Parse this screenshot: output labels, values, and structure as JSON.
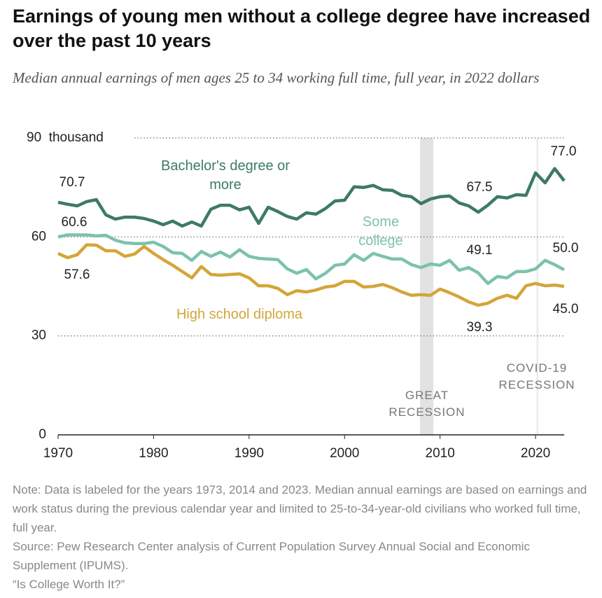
{
  "chart_data": {
    "type": "line",
    "title": "Earnings of young men without a college degree have increased over the past 10 years",
    "subtitle": "Median annual earnings of men ages 25 to 34 working full time, full year, in 2022 dollars",
    "x": [
      1970,
      1971,
      1972,
      1973,
      1974,
      1975,
      1976,
      1977,
      1978,
      1979,
      1980,
      1981,
      1982,
      1983,
      1984,
      1985,
      1986,
      1987,
      1988,
      1989,
      1990,
      1991,
      1992,
      1993,
      1994,
      1995,
      1996,
      1997,
      1998,
      1999,
      2000,
      2001,
      2002,
      2003,
      2004,
      2005,
      2006,
      2007,
      2008,
      2009,
      2010,
      2011,
      2012,
      2013,
      2014,
      2015,
      2016,
      2017,
      2018,
      2019,
      2020,
      2021,
      2022,
      2023
    ],
    "series": [
      {
        "name": "Bachelor's degree or more",
        "color": "#3d7a68",
        "values": [
          70.5,
          69.9,
          69.4,
          70.7,
          71.3,
          66.7,
          65.4,
          66.0,
          66.0,
          65.6,
          64.8,
          63.7,
          64.8,
          63.3,
          64.5,
          63.3,
          68.4,
          69.6,
          69.6,
          68.2,
          69.0,
          64.1,
          69.0,
          67.7,
          66.2,
          65.4,
          67.3,
          66.9,
          68.6,
          70.9,
          71.1,
          75.2,
          75.0,
          75.6,
          74.3,
          74.1,
          72.6,
          72.2,
          70.1,
          71.5,
          72.2,
          72.4,
          70.3,
          69.4,
          67.5,
          69.6,
          72.2,
          71.8,
          72.8,
          72.6,
          79.4,
          76.4,
          80.7,
          77.0
        ],
        "value_labels": [
          null,
          null,
          null,
          "70.7",
          null,
          null,
          null,
          null,
          null,
          null,
          null,
          null,
          null,
          null,
          null,
          null,
          null,
          null,
          null,
          null,
          null,
          null,
          null,
          null,
          null,
          null,
          null,
          null,
          null,
          null,
          null,
          null,
          null,
          null,
          null,
          null,
          null,
          null,
          null,
          null,
          null,
          null,
          null,
          null,
          "67.5",
          null,
          null,
          null,
          null,
          null,
          null,
          null,
          null,
          "77.0"
        ]
      },
      {
        "name": "Some college",
        "color": "#7cc2ae",
        "values": [
          60.0,
          60.6,
          60.6,
          60.6,
          60.3,
          60.5,
          59.0,
          58.2,
          58.0,
          58.0,
          58.4,
          57.1,
          55.2,
          55.0,
          52.9,
          55.6,
          54.1,
          55.4,
          53.9,
          56.1,
          54.1,
          53.5,
          53.3,
          53.1,
          50.3,
          49.0,
          50.1,
          47.3,
          49.0,
          51.4,
          51.8,
          54.6,
          52.9,
          55.0,
          54.1,
          53.3,
          53.3,
          51.6,
          50.7,
          51.8,
          51.4,
          52.9,
          49.9,
          50.7,
          49.1,
          45.9,
          48.0,
          47.6,
          49.5,
          49.5,
          50.3,
          52.9,
          51.6,
          50.0
        ],
        "value_labels": [
          null,
          null,
          null,
          "60.6",
          null,
          null,
          null,
          null,
          null,
          null,
          null,
          null,
          null,
          null,
          null,
          null,
          null,
          null,
          null,
          null,
          null,
          null,
          null,
          null,
          null,
          null,
          null,
          null,
          null,
          null,
          null,
          null,
          null,
          null,
          null,
          null,
          null,
          null,
          null,
          null,
          null,
          null,
          null,
          null,
          "49.1",
          null,
          null,
          null,
          null,
          null,
          null,
          null,
          null,
          "50.0"
        ]
      },
      {
        "name": "High school diploma",
        "color": "#d4a53a",
        "values": [
          55.0,
          53.7,
          54.6,
          57.6,
          57.5,
          55.8,
          55.8,
          54.1,
          54.8,
          57.1,
          55.0,
          53.1,
          51.4,
          49.5,
          47.6,
          51.0,
          48.6,
          48.4,
          48.6,
          48.8,
          47.6,
          45.2,
          45.2,
          44.4,
          42.5,
          43.7,
          43.3,
          43.9,
          44.8,
          45.2,
          46.5,
          46.5,
          44.8,
          45.0,
          45.6,
          44.6,
          43.3,
          42.3,
          42.5,
          42.3,
          44.2,
          43.1,
          41.8,
          40.3,
          39.3,
          39.9,
          41.4,
          42.3,
          41.4,
          45.2,
          45.9,
          45.2,
          45.4,
          45.0
        ],
        "value_labels": [
          null,
          null,
          null,
          "57.6",
          null,
          null,
          null,
          null,
          null,
          null,
          null,
          null,
          null,
          null,
          null,
          null,
          null,
          null,
          null,
          null,
          null,
          null,
          null,
          null,
          null,
          null,
          null,
          null,
          null,
          null,
          null,
          null,
          null,
          null,
          null,
          null,
          null,
          null,
          null,
          null,
          null,
          null,
          null,
          null,
          "39.3",
          null,
          null,
          null,
          null,
          null,
          null,
          null,
          null,
          "45.0"
        ]
      }
    ],
    "xlim": [
      1970,
      2023
    ],
    "xticks": [
      1970,
      1980,
      1990,
      2000,
      2010,
      2020
    ],
    "ylim": [
      0,
      90
    ],
    "yticks": [
      0,
      30,
      60,
      {
        "value": 90,
        "label": "90  thousand"
      }
    ],
    "recessions": [
      {
        "label": "GREAT RECESSION",
        "start": 2007.9,
        "end": 2009.3
      },
      {
        "label": "COVID-19 RECESSION",
        "start": 2020.1,
        "end": 2020.3
      }
    ],
    "notes": [
      "Note: Data is labeled for the years 1973, 2014 and 2023. Median annual earnings are based on earnings and work status during the previous calendar year and limited to 25-to-34-year-old civilians who worked full time, full year.",
      "Source: Pew Research Center analysis of Current Population Survey Annual Social and Economic Supplement (IPUMS).",
      "“Is College Worth It?”"
    ]
  }
}
